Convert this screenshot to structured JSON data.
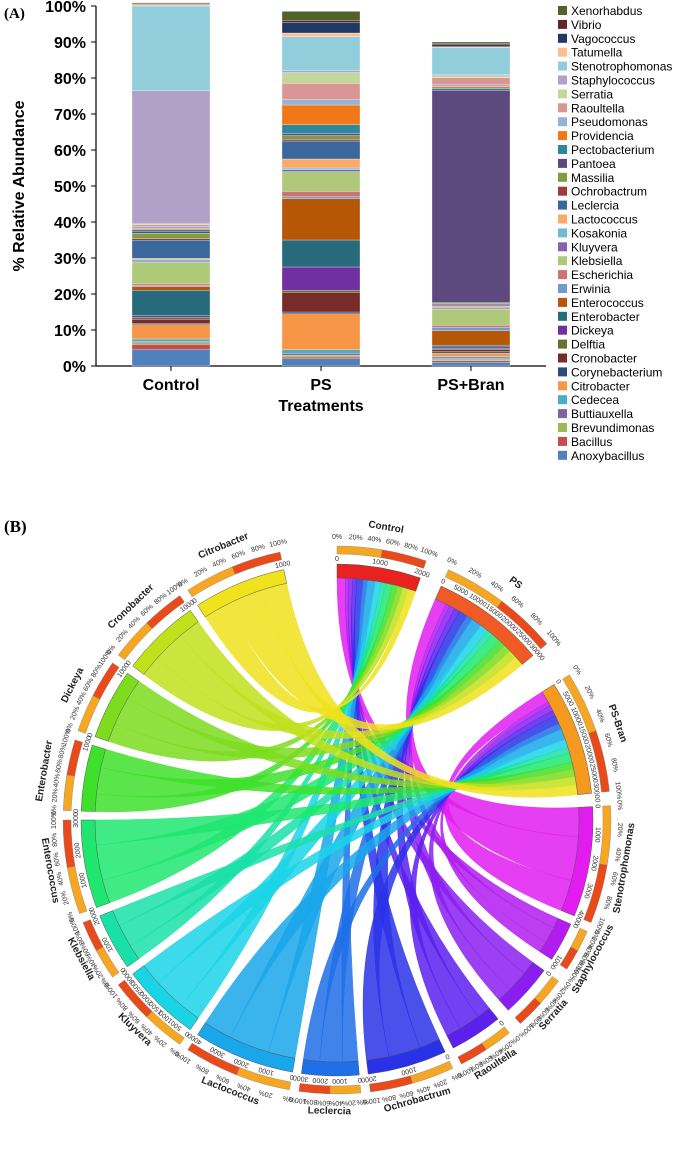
{
  "panel_a_label": "(A)",
  "panel_b_label": "(B)",
  "chart_data": [
    {
      "type": "bar",
      "stacked": true,
      "title": "",
      "xlabel": "Treatments",
      "ylabel": "% Relative Abundance",
      "ylim": [
        0,
        100
      ],
      "yticks": [
        "0%",
        "10%",
        "20%",
        "30%",
        "40%",
        "50%",
        "60%",
        "70%",
        "80%",
        "90%",
        "100%"
      ],
      "categories": [
        "Control",
        "PS",
        "PS+Bran"
      ],
      "legend_position": "right",
      "series": [
        {
          "name": "Anoxybacillus",
          "color": "#4f81bd",
          "values": [
            4.5,
            2.0,
            1.0
          ]
        },
        {
          "name": "Bacillus",
          "color": "#c0504d",
          "values": [
            1.5,
            0.5,
            0.5
          ]
        },
        {
          "name": "Brevundimonas",
          "color": "#9bbb59",
          "values": [
            0.5,
            0.5,
            0.3
          ]
        },
        {
          "name": "Buttiauxella",
          "color": "#8064a2",
          "values": [
            0.3,
            0.5,
            0.3
          ]
        },
        {
          "name": "Cedecea",
          "color": "#4bacc6",
          "values": [
            0.7,
            1.0,
            0.5
          ]
        },
        {
          "name": "Citrobacter",
          "color": "#f79646",
          "values": [
            4.0,
            10.0,
            1.0
          ]
        },
        {
          "name": "Corynebacterium",
          "color": "#2c4d75",
          "values": [
            0.3,
            0.5,
            0.5
          ]
        },
        {
          "name": "Cronobacter",
          "color": "#772c2a",
          "values": [
            1.2,
            5.5,
            0.5
          ]
        },
        {
          "name": "Delftia",
          "color": "#5f7530",
          "values": [
            0.5,
            0.5,
            0.3
          ]
        },
        {
          "name": "Dickeya",
          "color": "#7030a0",
          "values": [
            0.5,
            6.5,
            0.4
          ]
        },
        {
          "name": "Enterobacter",
          "color": "#276a7c",
          "values": [
            7.0,
            7.5,
            0.5
          ]
        },
        {
          "name": "Enterococcus",
          "color": "#b65708",
          "values": [
            1.0,
            11.5,
            4.0
          ]
        },
        {
          "name": "Erwinia",
          "color": "#729aca",
          "values": [
            0.3,
            0.5,
            1.0
          ]
        },
        {
          "name": "Escherichia",
          "color": "#cd7371",
          "values": [
            0.5,
            1.5,
            0.5
          ]
        },
        {
          "name": "Klebsiella",
          "color": "#afc97a",
          "values": [
            6.0,
            5.5,
            4.5
          ]
        },
        {
          "name": "Kluyvera",
          "color": "#8b5fb0",
          "values": [
            0.3,
            0.5,
            0.3
          ]
        },
        {
          "name": "Kosakonia",
          "color": "#6fbdd1",
          "values": [
            0.5,
            0.5,
            0.3
          ]
        },
        {
          "name": "Lactococcus",
          "color": "#f9ab6b",
          "values": [
            0.3,
            2.5,
            0.3
          ]
        },
        {
          "name": "Leclercia",
          "color": "#3a679c",
          "values": [
            5.0,
            5.0,
            0.3
          ]
        },
        {
          "name": "Ochrobactrum",
          "color": "#9f3b38",
          "values": [
            0.5,
            0.5,
            0.3
          ]
        },
        {
          "name": "Massilia",
          "color": "#7f9c40",
          "values": [
            1.5,
            1.0,
            0.3
          ]
        },
        {
          "name": "Pantoea",
          "color": "#5c4a7e",
          "values": [
            0.5,
            0.5,
            59.0
          ]
        },
        {
          "name": "Pectobacterium",
          "color": "#31859c",
          "values": [
            0.5,
            2.5,
            0.5
          ]
        },
        {
          "name": "Providencia",
          "color": "#f07818",
          "values": [
            0.3,
            5.5,
            0.5
          ]
        },
        {
          "name": "Pseudomonas",
          "color": "#95b3d7",
          "values": [
            0.5,
            1.5,
            0.5
          ]
        },
        {
          "name": "Raoultella",
          "color": "#da9694",
          "values": [
            0.5,
            4.5,
            2.0
          ]
        },
        {
          "name": "Serratia",
          "color": "#c4d79b",
          "values": [
            0.3,
            3.0,
            0.5
          ]
        },
        {
          "name": "Staphylococcus",
          "color": "#b1a0c7",
          "values": [
            37.0,
            0.5,
            0.3
          ]
        },
        {
          "name": "Stenotrophomonas",
          "color": "#92cddc",
          "values": [
            23.5,
            9.5,
            7.5
          ]
        },
        {
          "name": "Tatumella",
          "color": "#fac090",
          "values": [
            0.3,
            1.0,
            0.3
          ]
        },
        {
          "name": "Vagococcus",
          "color": "#1f3864",
          "values": [
            0.2,
            3.0,
            0.5
          ]
        },
        {
          "name": "Vibrio",
          "color": "#632523",
          "values": [
            0.2,
            0.5,
            0.3
          ]
        },
        {
          "name": "Xenorhabdus",
          "color": "#4f6228",
          "values": [
            0.2,
            2.5,
            0.5
          ]
        }
      ]
    },
    {
      "type": "chord",
      "title": "",
      "groups": [
        {
          "name": "Control",
          "color": "#e8221f",
          "ticks": [
            "0",
            "1000",
            "2000"
          ],
          "pct_ticks": [
            "0%",
            "20%",
            "40%",
            "60%",
            "80%",
            "100%"
          ]
        },
        {
          "name": "PS",
          "color": "#f05a24",
          "ticks": [
            "0",
            "5000",
            "10000",
            "15000",
            "20000",
            "25000",
            "30000"
          ],
          "pct_ticks": [
            "0%",
            "20%",
            "40%",
            "60%",
            "80%",
            "100%"
          ]
        },
        {
          "name": "PS-Bran",
          "color": "#f59a1f",
          "ticks": [
            "0",
            "5000",
            "10000",
            "15000",
            "20000",
            "25000",
            "30000"
          ],
          "pct_ticks": [
            "0%",
            "20%",
            "40%",
            "60%",
            "80%",
            "100%"
          ]
        },
        {
          "name": "Stenotrophomonas",
          "color": "#e21cf0",
          "ticks": [
            "0",
            "1000",
            "2000",
            "3000",
            "4000"
          ],
          "pct_ticks": [
            "0%",
            "20%",
            "40%",
            "60%",
            "80%",
            "100%"
          ]
        },
        {
          "name": "Staphylococcus",
          "color": "#b21cf0",
          "ticks": [
            "0",
            "1000"
          ],
          "pct_ticks": [
            "0%",
            "20%",
            "40%",
            "60%",
            "80%",
            "100%"
          ]
        },
        {
          "name": "Serratia",
          "color": "#8a1ef0",
          "ticks": [
            "0"
          ],
          "pct_ticks": [
            "0%",
            "20%",
            "40%",
            "60%",
            "80%",
            "100%"
          ]
        },
        {
          "name": "Raoultella",
          "color": "#5b20ee",
          "ticks": [
            "0"
          ],
          "pct_ticks": [
            "0%",
            "20%",
            "40%",
            "60%",
            "80%",
            "100%"
          ]
        },
        {
          "name": "Ochrobactrum",
          "color": "#2a32e8",
          "ticks": [
            "0",
            "1000",
            "2000"
          ],
          "pct_ticks": [
            "0%",
            "20%",
            "40%",
            "60%",
            "80%",
            "100%"
          ]
        },
        {
          "name": "Leclercia",
          "color": "#1e6fe8",
          "ticks": [
            "0",
            "1000",
            "2000",
            "3000"
          ],
          "pct_ticks": [
            "0%",
            "20%",
            "40%",
            "60%",
            "80%",
            "100%"
          ]
        },
        {
          "name": "Lactococcus",
          "color": "#19a6ea",
          "ticks": [
            "0",
            "1000",
            "2000",
            "3000",
            "4000"
          ],
          "pct_ticks": [
            "0%",
            "20%",
            "40%",
            "60%",
            "80%",
            "100%"
          ]
        },
        {
          "name": "Kluyvera",
          "color": "#1ad4e6",
          "ticks": [
            "0",
            "500",
            "1000",
            "1500",
            "2000",
            "2500",
            "3000"
          ],
          "pct_ticks": [
            "0%",
            "20%",
            "40%",
            "60%",
            "80%",
            "100%"
          ]
        },
        {
          "name": "Klebsiella",
          "color": "#19e0a8",
          "ticks": [
            "0",
            "1000",
            "2000"
          ],
          "pct_ticks": [
            "0%",
            "20%",
            "40%",
            "60%",
            "80%",
            "100%"
          ]
        },
        {
          "name": "Enterococcus",
          "color": "#1ee66e",
          "ticks": [
            "0",
            "1000",
            "2000",
            "3000"
          ],
          "pct_ticks": [
            "0%",
            "20%",
            "40%",
            "60%",
            "80%",
            "100%"
          ]
        },
        {
          "name": "Enterobacter",
          "color": "#3ee02a",
          "ticks": [
            "0",
            "1000"
          ],
          "pct_ticks": [
            "0%",
            "20%",
            "40%",
            "60%",
            "80%",
            "100%"
          ]
        },
        {
          "name": "Dickeya",
          "color": "#7ddc1e",
          "ticks": [
            "0",
            "1000"
          ],
          "pct_ticks": [
            "0%",
            "20%",
            "40%",
            "60%",
            "80%",
            "100%"
          ]
        },
        {
          "name": "Cronobacter",
          "color": "#c0e01c",
          "ticks": [
            "0",
            "1000"
          ],
          "pct_ticks": [
            "0%",
            "20%",
            "40%",
            "60%",
            "80%",
            "100%"
          ]
        },
        {
          "name": "Citrobacter",
          "color": "#f0e21c",
          "ticks": [
            "0",
            "1000"
          ],
          "pct_ticks": [
            "0%",
            "20%",
            "40%",
            "60%",
            "80%",
            "100%"
          ]
        }
      ]
    }
  ]
}
